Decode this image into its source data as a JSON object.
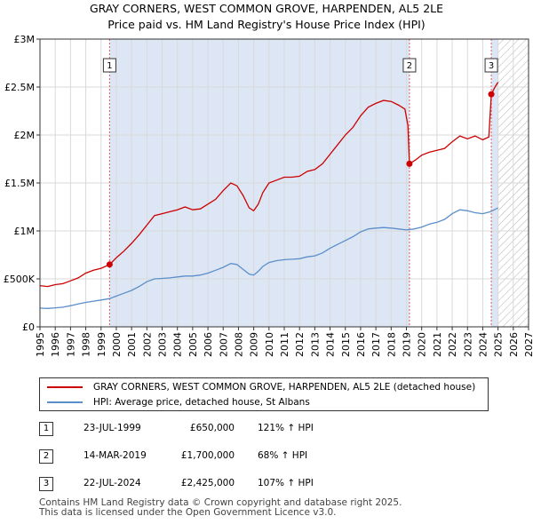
{
  "chart_data": {
    "type": "line",
    "title": "GRAY CORNERS, WEST COMMON GROVE, HARPENDEN, AL5 2LE",
    "subtitle": "Price paid vs. HM Land Registry's House Price Index (HPI)",
    "xlim": [
      1995,
      2027
    ],
    "ylim": [
      0,
      3000000
    ],
    "x_ticks": [
      "1995",
      "1996",
      "1997",
      "1998",
      "1999",
      "2000",
      "2001",
      "2002",
      "2003",
      "2004",
      "2005",
      "2006",
      "2007",
      "2008",
      "2009",
      "2010",
      "2011",
      "2012",
      "2013",
      "2014",
      "2015",
      "2016",
      "2017",
      "2018",
      "2019",
      "2020",
      "2021",
      "2022",
      "2023",
      "2024",
      "2025",
      "2026",
      "2027"
    ],
    "y_ticks": [
      {
        "value": 0,
        "label": "£0"
      },
      {
        "value": 500000,
        "label": "£500K"
      },
      {
        "value": 1000000,
        "label": "£1M"
      },
      {
        "value": 1500000,
        "label": "£1.5M"
      },
      {
        "value": 2000000,
        "label": "£2M"
      },
      {
        "value": 2500000,
        "label": "£2.5M"
      },
      {
        "value": 3000000,
        "label": "£3M"
      }
    ],
    "shaded_regions": [
      {
        "from": 1999.56,
        "to": 2019.2,
        "color": "#dde6f5"
      },
      {
        "from": 2024.56,
        "to": 2025.0,
        "color": "#dde6f5"
      }
    ],
    "hatched_region": {
      "from": 2025.0,
      "to": 2027
    },
    "series": [
      {
        "name": "GRAY CORNERS, WEST COMMON GROVE, HARPENDEN, AL5 2LE (detached house)",
        "color": "#cc0000",
        "x": [
          1995,
          1995.5,
          1996,
          1996.5,
          1997,
          1997.5,
          1998,
          1998.5,
          1999,
          1999.56,
          2000,
          2000.5,
          2001,
          2001.5,
          2002,
          2002.5,
          2003,
          2003.5,
          2004,
          2004.5,
          2005,
          2005.5,
          2006,
          2006.5,
          2007,
          2007.5,
          2007.9,
          2008.3,
          2008.7,
          2009.0,
          2009.3,
          2009.6,
          2010,
          2010.5,
          2011,
          2011.5,
          2012,
          2012.5,
          2013,
          2013.5,
          2014,
          2014.5,
          2015,
          2015.5,
          2016,
          2016.5,
          2017,
          2017.5,
          2018,
          2018.5,
          2018.9,
          2019.1,
          2019.2,
          2019.6,
          2020,
          2020.5,
          2021,
          2021.5,
          2022,
          2022.5,
          2023,
          2023.5,
          2024,
          2024.4,
          2024.56,
          2024.8,
          2025.0
        ],
        "values": [
          430000,
          420000,
          440000,
          450000,
          480000,
          510000,
          560000,
          590000,
          610000,
          650000,
          720000,
          790000,
          870000,
          960000,
          1060000,
          1160000,
          1180000,
          1200000,
          1220000,
          1250000,
          1220000,
          1230000,
          1280000,
          1330000,
          1420000,
          1500000,
          1470000,
          1370000,
          1240000,
          1210000,
          1280000,
          1400000,
          1500000,
          1530000,
          1560000,
          1560000,
          1570000,
          1620000,
          1640000,
          1700000,
          1800000,
          1900000,
          2000000,
          2080000,
          2200000,
          2290000,
          2330000,
          2360000,
          2350000,
          2310000,
          2270000,
          2100000,
          1700000,
          1740000,
          1790000,
          1820000,
          1840000,
          1860000,
          1930000,
          1990000,
          1960000,
          1990000,
          1950000,
          1980000,
          2425000,
          2500000,
          2550000
        ]
      },
      {
        "name": "HPI: Average price, detached house, St Albans",
        "color": "#5b8fc9",
        "x": [
          1995,
          1995.5,
          1996,
          1996.5,
          1997,
          1997.5,
          1998,
          1998.5,
          1999,
          1999.56,
          2000,
          2000.5,
          2001,
          2001.5,
          2002,
          2002.5,
          2003,
          2003.5,
          2004,
          2004.5,
          2005,
          2005.5,
          2006,
          2006.5,
          2007,
          2007.5,
          2007.9,
          2008.3,
          2008.7,
          2009.0,
          2009.3,
          2009.6,
          2010,
          2010.5,
          2011,
          2011.5,
          2012,
          2012.5,
          2013,
          2013.5,
          2014,
          2014.5,
          2015,
          2015.5,
          2016,
          2016.5,
          2017,
          2017.5,
          2018,
          2018.5,
          2019,
          2019.5,
          2020,
          2020.5,
          2021,
          2021.5,
          2022,
          2022.5,
          2023,
          2023.5,
          2024,
          2024.5,
          2025.0
        ],
        "values": [
          195000,
          192000,
          198000,
          205000,
          220000,
          238000,
          255000,
          268000,
          280000,
          294000,
          320000,
          350000,
          380000,
          420000,
          470000,
          500000,
          505000,
          510000,
          520000,
          530000,
          530000,
          540000,
          560000,
          590000,
          620000,
          660000,
          650000,
          600000,
          550000,
          540000,
          580000,
          630000,
          670000,
          690000,
          700000,
          705000,
          710000,
          730000,
          740000,
          770000,
          820000,
          860000,
          900000,
          940000,
          990000,
          1020000,
          1030000,
          1035000,
          1030000,
          1020000,
          1010000,
          1020000,
          1040000,
          1070000,
          1090000,
          1120000,
          1180000,
          1220000,
          1210000,
          1190000,
          1180000,
          1200000,
          1240000
        ]
      }
    ],
    "sale_markers": [
      {
        "id": "1",
        "x": 1999.56,
        "value": 650000
      },
      {
        "id": "2",
        "x": 2019.2,
        "value": 1700000
      },
      {
        "id": "3",
        "x": 2024.56,
        "value": 2425000
      }
    ]
  },
  "legend": {
    "property_label": "GRAY CORNERS, WEST COMMON GROVE, HARPENDEN, AL5 2LE (detached house)",
    "hpi_label": "HPI: Average price, detached house, St Albans",
    "property_color": "#cc0000",
    "hpi_color": "#5b8fc9"
  },
  "sales": [
    {
      "id": "1",
      "date": "23-JUL-1999",
      "price": "£650,000",
      "hpi": "121% ↑ HPI"
    },
    {
      "id": "2",
      "date": "14-MAR-2019",
      "price": "£1,700,000",
      "hpi": "68% ↑ HPI"
    },
    {
      "id": "3",
      "date": "22-JUL-2024",
      "price": "£2,425,000",
      "hpi": "107% ↑ HPI"
    }
  ],
  "footer": {
    "line1": "Contains HM Land Registry data © Crown copyright and database right 2025.",
    "line2": "This data is licensed under the Open Government Licence v3.0."
  }
}
